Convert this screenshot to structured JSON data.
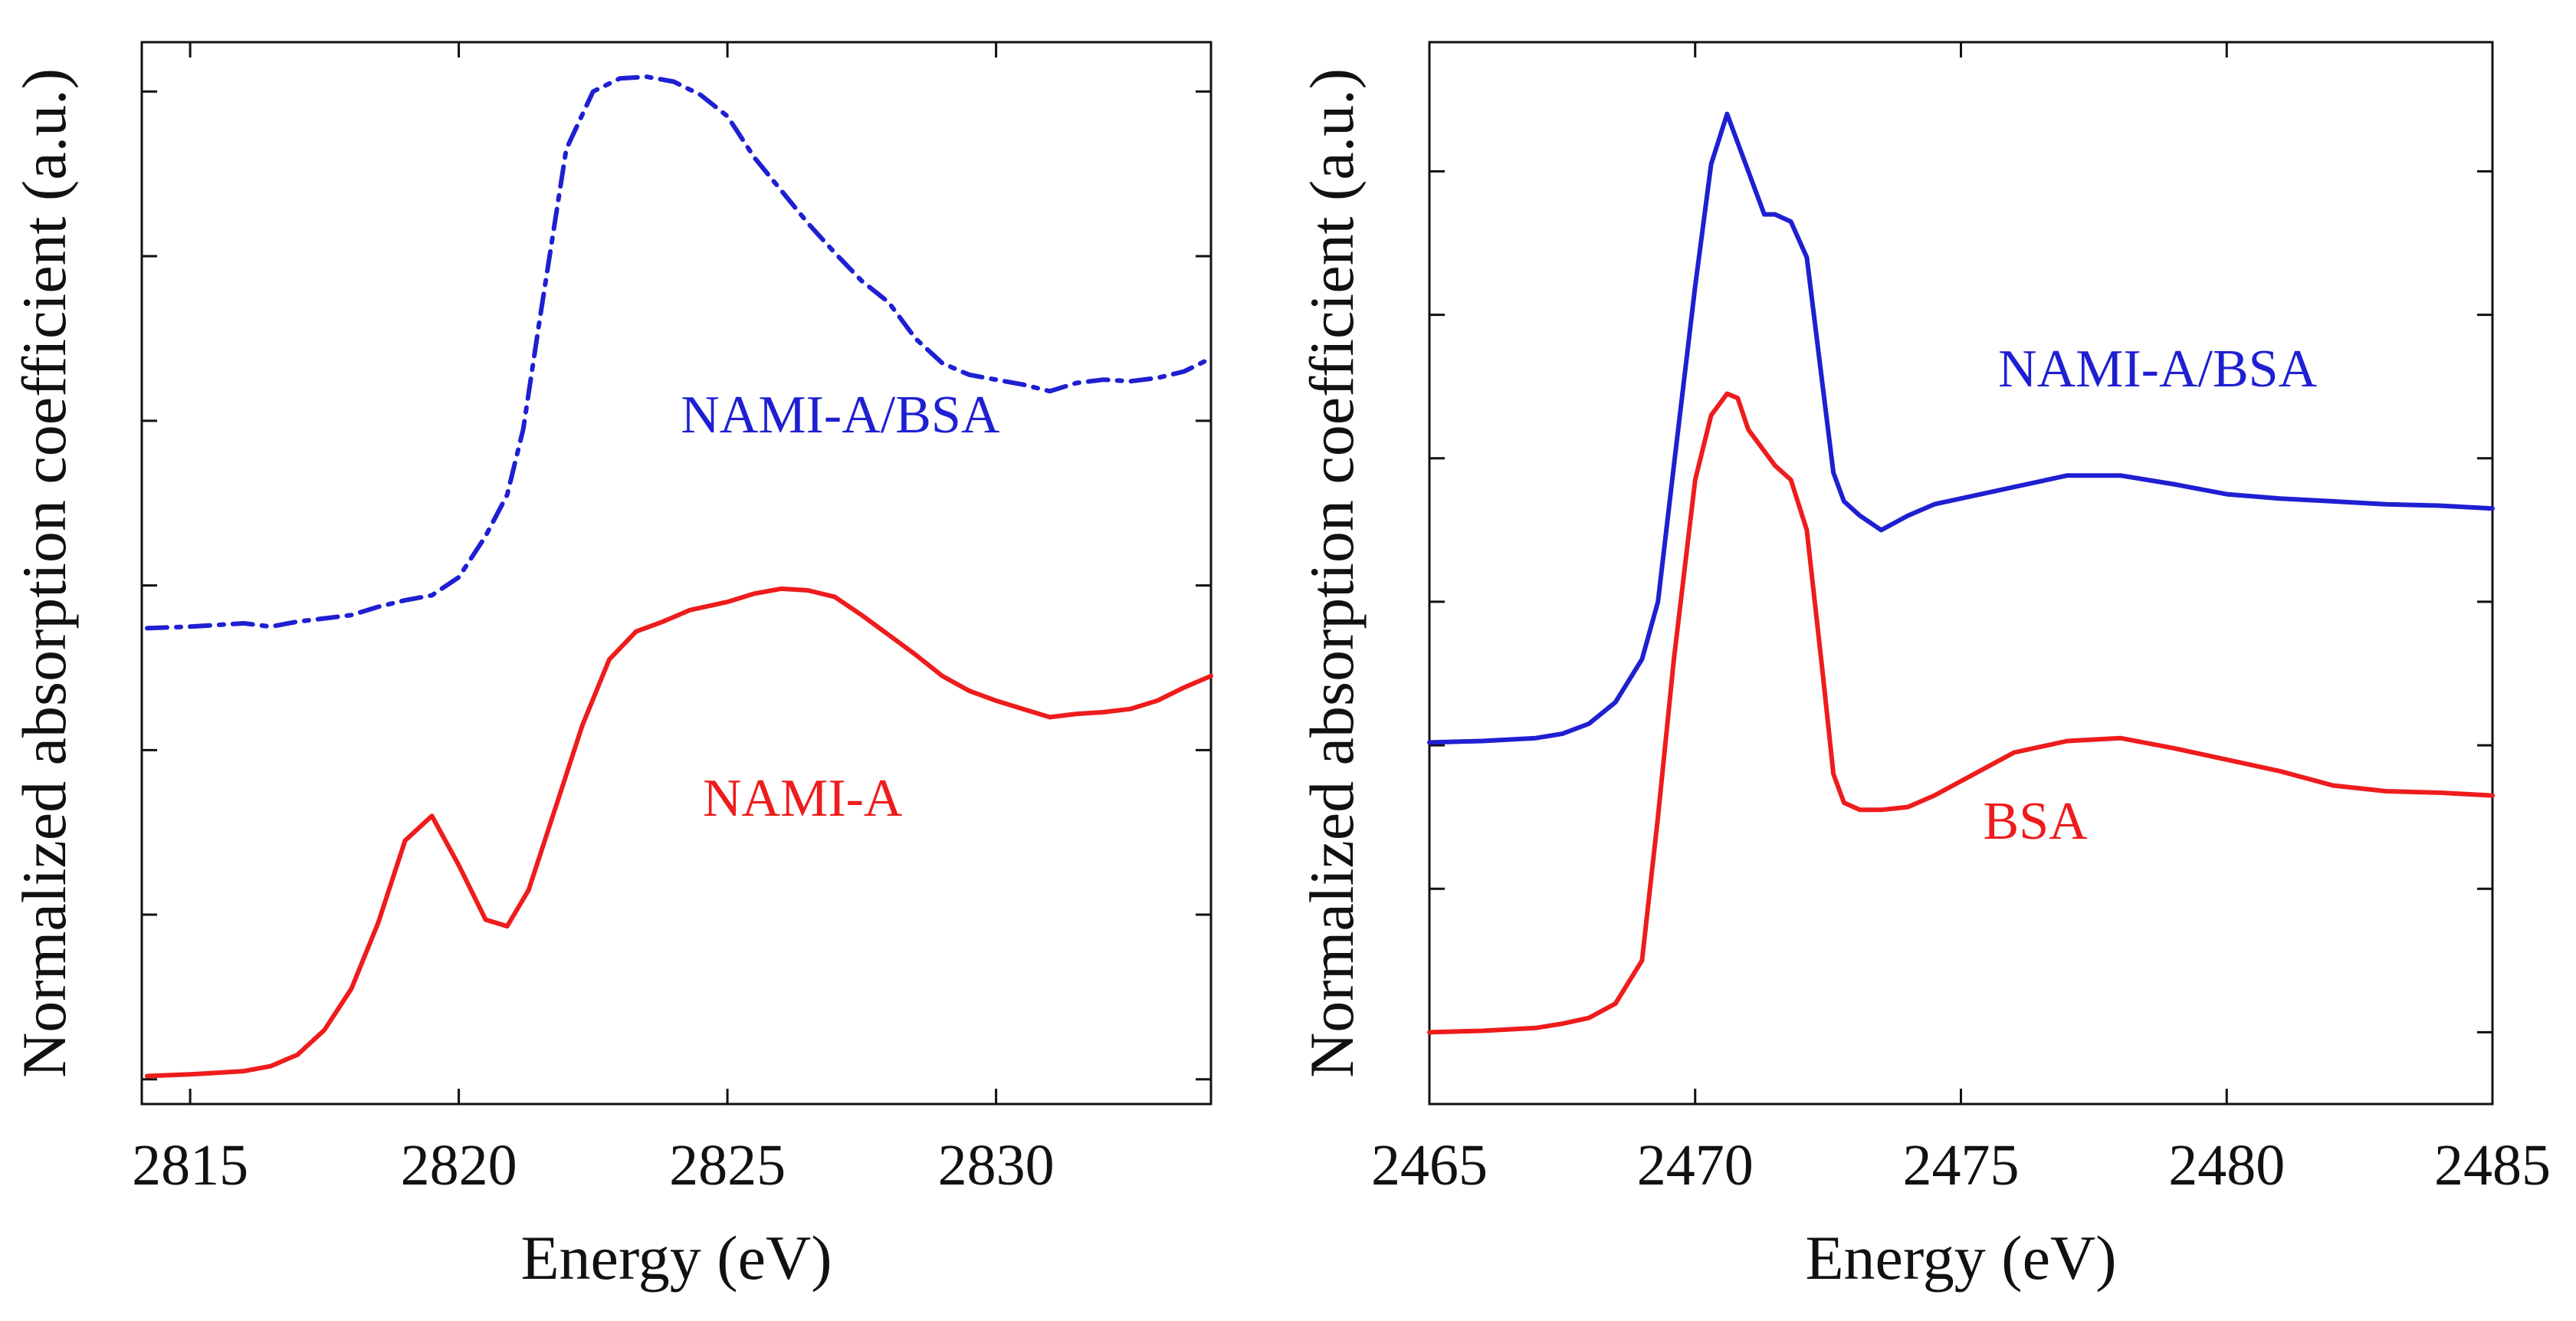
{
  "chart_data": [
    {
      "type": "line",
      "xlabel": "Energy (eV)",
      "ylabel": "Normalized absorption coefficient (a.u.)",
      "xlim": [
        2814.1,
        2834
      ],
      "ylim": [
        -0.15,
        6.3
      ],
      "x_ticks": [
        2815,
        2820,
        2825,
        2830
      ],
      "x_tick_labels": [
        "2815",
        "2820",
        "2825",
        "2830"
      ],
      "y_ticks": [
        0,
        1,
        2,
        3,
        4,
        5,
        6
      ],
      "series": [
        {
          "name": "NAMI-A/BSA",
          "color": "#1f1fd2",
          "dash": "dash-dot",
          "x": [
            2814.2,
            2815,
            2816,
            2816.5,
            2817,
            2818,
            2818.5,
            2819,
            2819.5,
            2820,
            2820.5,
            2820.9,
            2821.2,
            2821.5,
            2822,
            2822.5,
            2823,
            2823.5,
            2824,
            2824.5,
            2825,
            2825.5,
            2826,
            2826.5,
            2827,
            2827.5,
            2828,
            2828.5,
            2829,
            2829.5,
            2830,
            2830.5,
            2831,
            2831.5,
            2832,
            2832.5,
            2833,
            2833.5,
            2834
          ],
          "y": [
            2.74,
            2.75,
            2.77,
            2.75,
            2.78,
            2.82,
            2.87,
            2.91,
            2.94,
            3.05,
            3.3,
            3.55,
            3.95,
            4.6,
            5.65,
            6.0,
            6.08,
            6.09,
            6.06,
            5.98,
            5.85,
            5.6,
            5.4,
            5.2,
            5.02,
            4.85,
            4.72,
            4.5,
            4.35,
            4.28,
            4.25,
            4.22,
            4.18,
            4.23,
            4.25,
            4.24,
            4.26,
            4.3,
            4.38
          ]
        },
        {
          "name": "NAMI-A",
          "color": "#ee1c1c",
          "dash": "solid",
          "x": [
            2814.2,
            2815,
            2816,
            2816.5,
            2817,
            2817.5,
            2818,
            2818.5,
            2819,
            2819.5,
            2820,
            2820.5,
            2820.9,
            2821.3,
            2821.8,
            2822.3,
            2822.8,
            2823.3,
            2823.8,
            2824.3,
            2825,
            2825.5,
            2826,
            2826.5,
            2827,
            2827.5,
            2828,
            2828.5,
            2829,
            2829.5,
            2830,
            2830.5,
            2831,
            2831.5,
            2832,
            2832.5,
            2833,
            2833.5,
            2834
          ],
          "y": [
            0.02,
            0.03,
            0.05,
            0.08,
            0.15,
            0.3,
            0.55,
            0.95,
            1.45,
            1.6,
            1.3,
            0.97,
            0.93,
            1.15,
            1.65,
            2.15,
            2.55,
            2.72,
            2.78,
            2.85,
            2.9,
            2.95,
            2.98,
            2.97,
            2.93,
            2.82,
            2.7,
            2.58,
            2.45,
            2.36,
            2.3,
            2.25,
            2.2,
            2.22,
            2.23,
            2.25,
            2.3,
            2.38,
            2.45
          ]
        }
      ],
      "annotations": [
        {
          "text": "NAMI-A/BSA",
          "color": "#1f1fd2",
          "x": 2827.1,
          "y": 3.93
        },
        {
          "text": "NAMI-A",
          "color": "#ee1c1c",
          "x": 2826.4,
          "y": 1.6
        }
      ]
    },
    {
      "type": "line",
      "xlabel": "Energy (eV)",
      "ylabel": "Normalized absorption coefficient (a.u.)",
      "xlim": [
        2465,
        2485
      ],
      "ylim": [
        -0.5,
        6.9
      ],
      "x_ticks": [
        2465,
        2470,
        2475,
        2480,
        2485
      ],
      "x_tick_labels": [
        "2465",
        "2470",
        "2475",
        "2480",
        "2485"
      ],
      "y_ticks": [
        0,
        1,
        2,
        3,
        4,
        5,
        6
      ],
      "series": [
        {
          "name": "NAMI-A/BSA",
          "color": "#1f1fd2",
          "dash": "solid",
          "x": [
            2465,
            2466,
            2467,
            2467.5,
            2468,
            2468.5,
            2469,
            2469.3,
            2469.6,
            2470,
            2470.3,
            2470.6,
            2470.8,
            2471,
            2471.3,
            2471.5,
            2471.8,
            2472.1,
            2472.4,
            2472.6,
            2472.8,
            2473.1,
            2473.5,
            2474,
            2474.5,
            2475,
            2476,
            2477,
            2478,
            2479,
            2480,
            2481,
            2482,
            2483,
            2484,
            2485
          ],
          "y": [
            2.02,
            2.03,
            2.05,
            2.08,
            2.15,
            2.3,
            2.6,
            3.0,
            3.95,
            5.2,
            6.05,
            6.4,
            6.2,
            6.0,
            5.7,
            5.7,
            5.65,
            5.4,
            4.5,
            3.9,
            3.7,
            3.6,
            3.5,
            3.6,
            3.68,
            3.72,
            3.8,
            3.88,
            3.88,
            3.82,
            3.75,
            3.72,
            3.7,
            3.68,
            3.67,
            3.65
          ]
        },
        {
          "name": "BSA",
          "color": "#ee1c1c",
          "dash": "solid",
          "x": [
            2465,
            2466,
            2467,
            2467.5,
            2468,
            2468.5,
            2469,
            2469.3,
            2469.6,
            2470,
            2470.3,
            2470.6,
            2470.8,
            2471,
            2471.3,
            2471.5,
            2471.8,
            2472.1,
            2472.4,
            2472.6,
            2472.8,
            2473.1,
            2473.5,
            2474,
            2474.5,
            2475,
            2476,
            2477,
            2478,
            2479,
            2480,
            2481,
            2482,
            2483,
            2484,
            2485
          ],
          "y": [
            0.0,
            0.01,
            0.03,
            0.06,
            0.1,
            0.2,
            0.5,
            1.5,
            2.6,
            3.85,
            4.3,
            4.45,
            4.42,
            4.2,
            4.05,
            3.95,
            3.85,
            3.5,
            2.5,
            1.8,
            1.6,
            1.55,
            1.55,
            1.57,
            1.65,
            1.75,
            1.95,
            2.03,
            2.05,
            1.98,
            1.9,
            1.82,
            1.72,
            1.68,
            1.67,
            1.65
          ]
        }
      ],
      "annotations": [
        {
          "text": "NAMI-A/BSA",
          "color": "#1f1fd2",
          "x": 2478.7,
          "y": 4.5
        },
        {
          "text": "BSA",
          "color": "#ee1c1c",
          "x": 2476.4,
          "y": 1.35
        }
      ]
    }
  ]
}
